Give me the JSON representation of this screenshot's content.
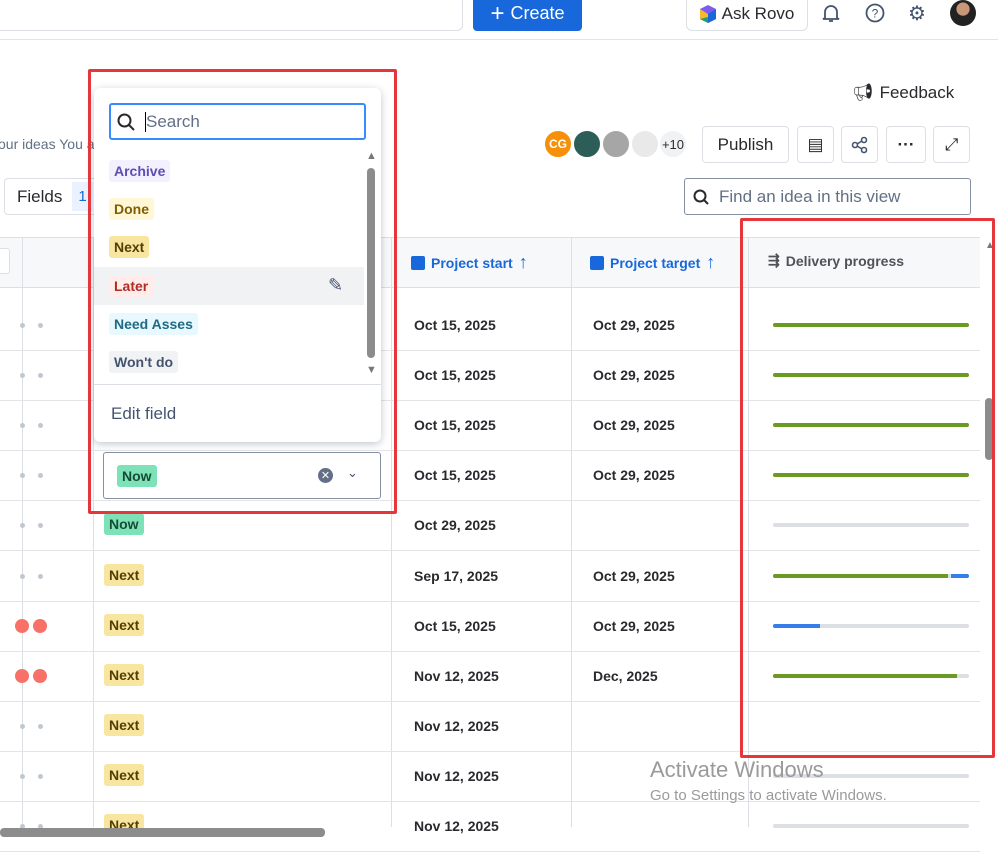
{
  "topbar": {
    "create_label": "Create",
    "ask_rovo_label": "Ask Rovo"
  },
  "header": {
    "feedback_label": "Feedback",
    "description_fragment": "our ideas You a",
    "publish_label": "Publish",
    "avatar_initials": "CG",
    "avatar_more": "+10",
    "fields_label": "Fields",
    "fields_count": "1",
    "find_placeholder": "Find an idea in this view"
  },
  "columns": {
    "project_start": "Project start",
    "project_target": "Project target",
    "delivery_progress": "Delivery progress"
  },
  "dropdown": {
    "search_placeholder": "Search",
    "options": [
      {
        "label": "Archive",
        "bg": "#f3f0ff",
        "fg": "#5e4db2"
      },
      {
        "label": "Done",
        "bg": "#fff7d6",
        "fg": "#7f5f01"
      },
      {
        "label": "Next",
        "bg": "#f8e6a0",
        "fg": "#533f04"
      },
      {
        "label": "Later",
        "bg": "#ffeceb",
        "fg": "#ae2e24"
      },
      {
        "label": "Need Asses",
        "bg": "#e7f9ff",
        "fg": "#206a83"
      },
      {
        "label": "Won't do",
        "bg": "#f1f2f4",
        "fg": "#44546f"
      }
    ],
    "edit_field_label": "Edit field",
    "selected_value": "Now"
  },
  "rows": [
    {
      "status": "",
      "start": "Oct 15, 2025",
      "target": "Oct 29, 2025",
      "progress": {
        "done": 100,
        "in_progress": 0
      },
      "red_dots": false
    },
    {
      "status": "",
      "start": "Oct 15, 2025",
      "target": "Oct 29, 2025",
      "progress": {
        "done": 100,
        "in_progress": 0
      },
      "red_dots": false
    },
    {
      "status": "",
      "start": "Oct 15, 2025",
      "target": "Oct 29, 2025",
      "progress": {
        "done": 100,
        "in_progress": 0
      },
      "red_dots": false
    },
    {
      "status": "Now",
      "start": "Oct 15, 2025",
      "target": "Oct 29, 2025",
      "progress": {
        "done": 100,
        "in_progress": 0
      },
      "red_dots": false
    },
    {
      "status": "Now",
      "start": "Oct 29, 2025",
      "target": "",
      "progress": {
        "done": 0,
        "in_progress": 0
      },
      "red_dots": false
    },
    {
      "status": "Next",
      "start": "Sep 17, 2025",
      "target": "Oct 29, 2025",
      "progress": {
        "done": 90,
        "in_progress": 9
      },
      "red_dots": false
    },
    {
      "status": "Next",
      "start": "Oct 15, 2025",
      "target": "Oct 29, 2025",
      "progress": {
        "done": 0,
        "in_progress": 24
      },
      "red_dots": true
    },
    {
      "status": "Next",
      "start": "Nov 12, 2025",
      "target": "Dec, 2025",
      "progress": {
        "done": 94,
        "in_progress": 0
      },
      "red_dots": true
    },
    {
      "status": "Next",
      "start": "Nov 12, 2025",
      "target": "",
      "progress": null,
      "red_dots": false
    },
    {
      "status": "Next",
      "start": "Nov 12, 2025",
      "target": "",
      "progress": {
        "done": 0,
        "in_progress": 0
      },
      "red_dots": false
    },
    {
      "status": "Next",
      "start": "Nov 12, 2025",
      "target": "",
      "progress": {
        "done": 0,
        "in_progress": 0
      },
      "red_dots": false
    }
  ],
  "watermark": {
    "title": "Activate Windows",
    "subtitle": "Go to Settings to activate Windows."
  },
  "colors": {
    "accent": "#1868db",
    "done": "#6a9a23",
    "in_progress": "#357de8",
    "highlight": "#e5373b"
  }
}
